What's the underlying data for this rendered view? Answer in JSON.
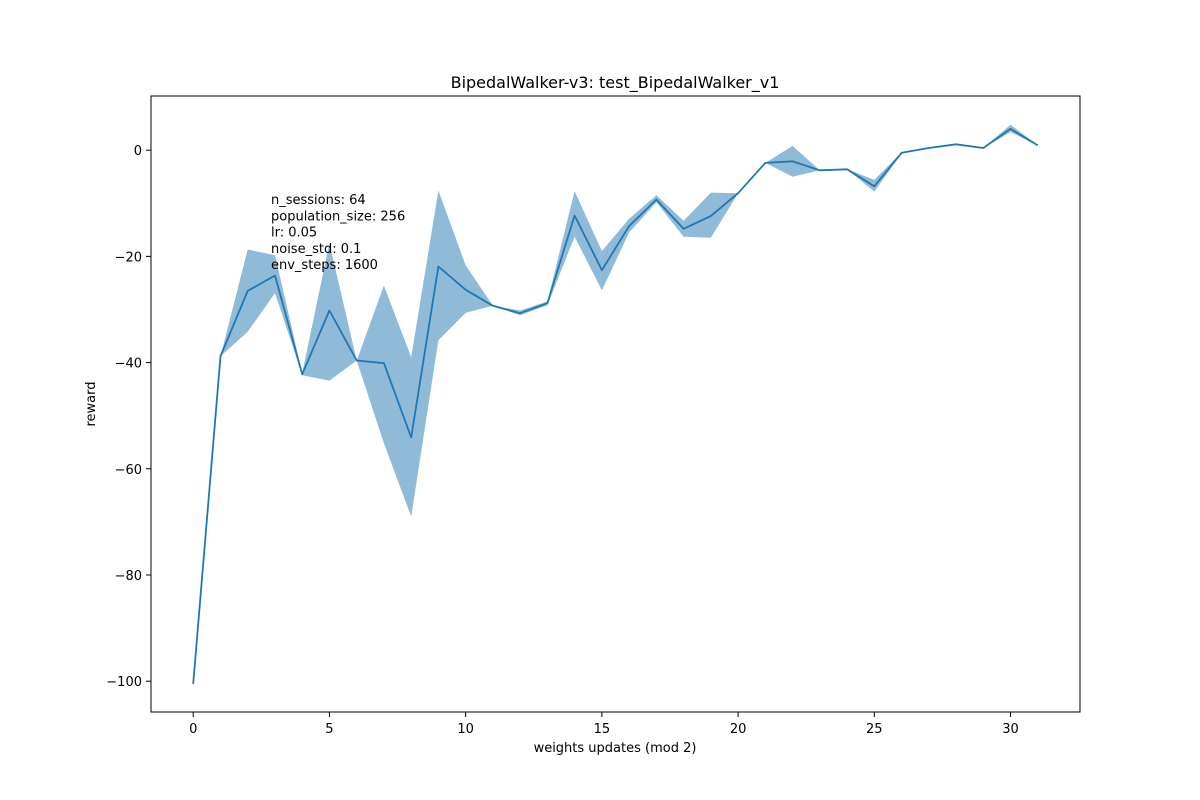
{
  "chart_data": {
    "type": "line",
    "title": "BipedalWalker-v3: test_BipedalWalker_v1",
    "xlabel": "weights updates (mod 2)",
    "ylabel": "reward",
    "xlim": [
      -1.55,
      32.55
    ],
    "ylim": [
      -105.8,
      10.2
    ],
    "x_ticks": [
      0,
      5,
      10,
      15,
      20,
      25,
      30
    ],
    "y_ticks": [
      -100,
      -80,
      -60,
      -40,
      -20,
      0
    ],
    "grid": false,
    "annotation": [
      "n_sessions: 64",
      "population_size: 256",
      "lr: 0.05",
      "noise_std: 0.1",
      "env_steps: 1600"
    ],
    "series": [
      {
        "x": [
          0,
          1,
          2,
          3,
          4,
          5,
          6,
          7,
          8,
          9,
          10,
          11,
          12,
          13,
          14,
          15,
          16,
          17,
          18,
          19,
          20,
          21,
          22,
          23,
          24,
          25,
          26,
          27,
          28,
          29,
          30,
          31
        ],
        "mean": [
          -100.5,
          -38.8,
          -26.5,
          -23.6,
          -42.2,
          -30.2,
          -39.6,
          -40.1,
          -54.1,
          -21.9,
          -26.3,
          -29.3,
          -30.7,
          -28.8,
          -12.3,
          -22.6,
          -14.3,
          -9.3,
          -14.8,
          -12.4,
          -8.1,
          -2.4,
          -2.1,
          -3.8,
          -3.6,
          -6.8,
          -0.5,
          0.4,
          1.1,
          0.4,
          4.0,
          0.9
        ],
        "lower": [
          -100.5,
          -38.8,
          -34.2,
          -26.9,
          -42.4,
          -43.4,
          -39.6,
          -55.2,
          -69.0,
          -35.8,
          -30.6,
          -29.3,
          -31.1,
          -29.2,
          -16.3,
          -26.4,
          -15.5,
          -9.8,
          -16.3,
          -16.5,
          -8.1,
          -2.4,
          -5.0,
          -3.8,
          -3.6,
          -7.8,
          -0.6,
          0.4,
          1.1,
          0.4,
          3.4,
          0.9
        ],
        "upper": [
          -100.5,
          -38.8,
          -18.7,
          -19.8,
          -42.0,
          -17.5,
          -39.6,
          -25.5,
          -39.0,
          -7.6,
          -21.7,
          -29.3,
          -30.2,
          -28.5,
          -7.7,
          -19.0,
          -12.9,
          -8.5,
          -13.3,
          -8.0,
          -8.1,
          -2.4,
          0.8,
          -3.8,
          -3.6,
          -5.6,
          -0.4,
          0.4,
          1.1,
          0.4,
          4.8,
          0.9
        ]
      }
    ],
    "colors": {
      "line": "#1f77b4",
      "band": "#1f77b4",
      "axes": "#000000"
    }
  }
}
